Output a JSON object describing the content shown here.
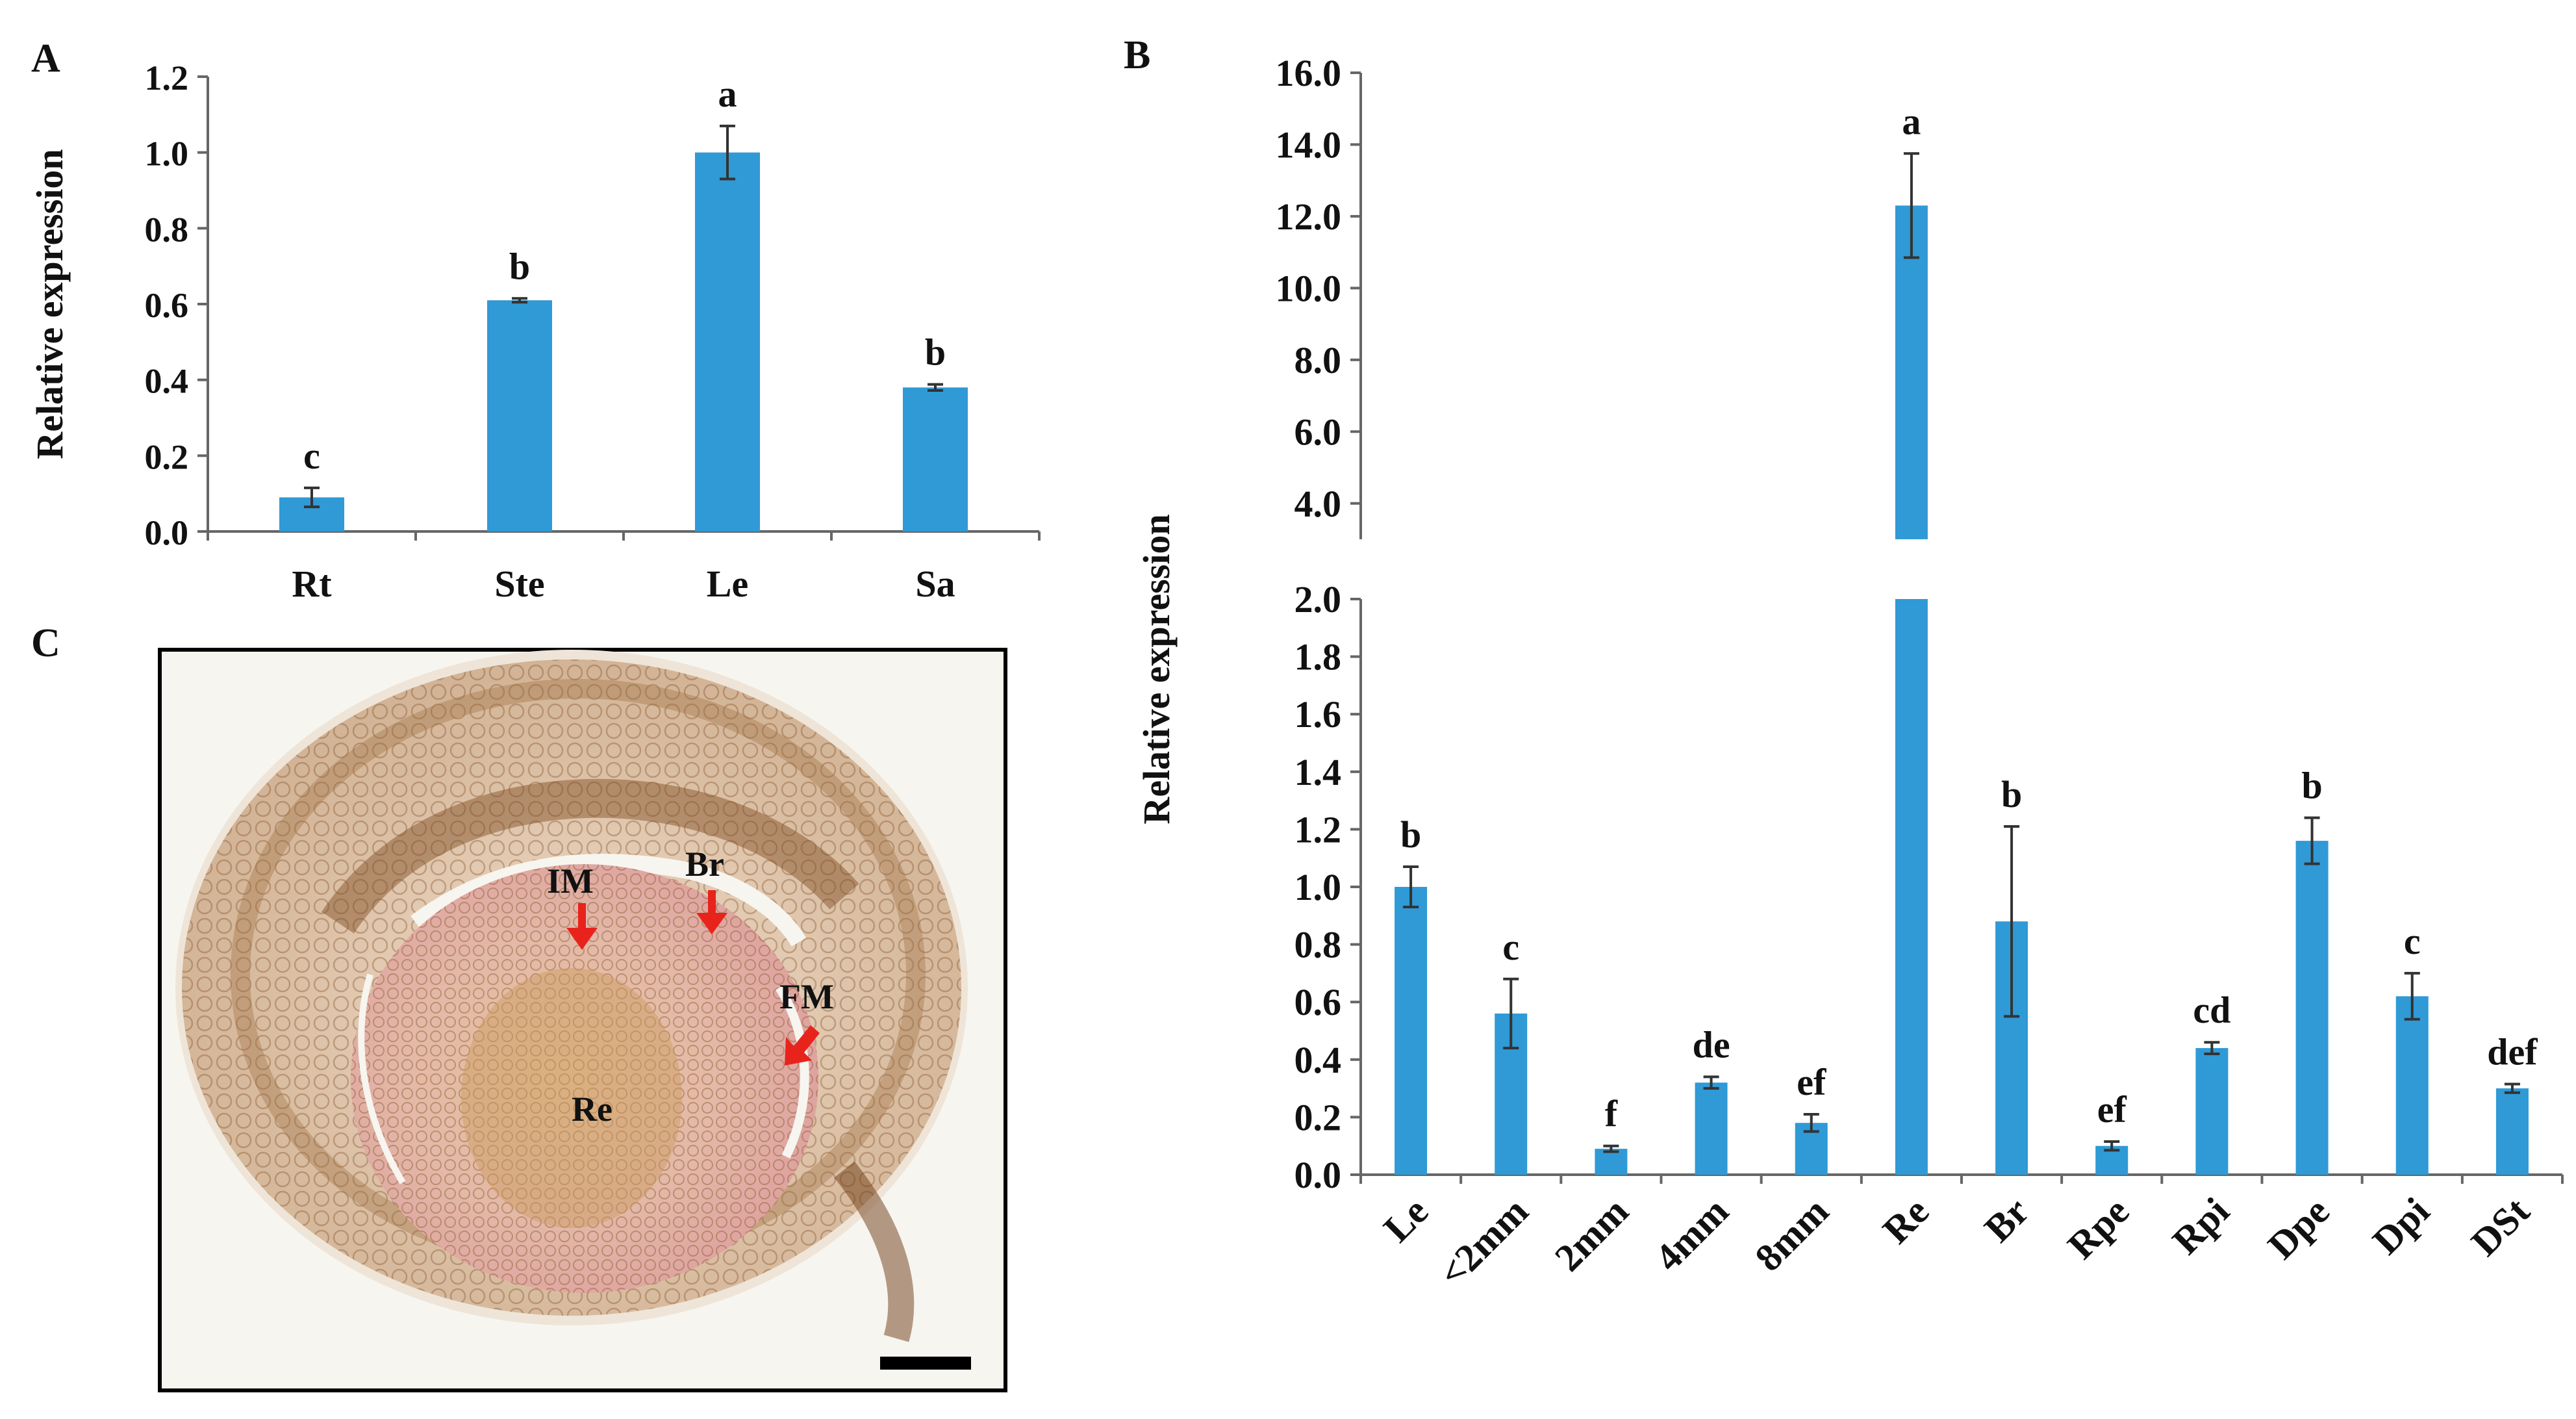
{
  "chart_data": [
    {
      "panel": "A",
      "type": "bar",
      "ylabel": "Relative expression",
      "ylim": [
        0,
        1.2
      ],
      "yticks": [
        "0.0",
        "0.2",
        "0.4",
        "0.6",
        "0.8",
        "1.0",
        "1.2"
      ],
      "categories": [
        "Rt",
        "Ste",
        "Le",
        "Sa"
      ],
      "values": [
        0.09,
        0.61,
        1.0,
        0.38
      ],
      "errors": [
        0.025,
        0.005,
        0.07,
        0.008
      ],
      "letters": [
        "c",
        "b",
        "a",
        "b"
      ],
      "bar_color": "#2f9ad6"
    },
    {
      "panel": "B",
      "type": "bar",
      "ylabel": "Relative expression",
      "broken_axis": true,
      "lower_ylim": [
        0,
        2.0
      ],
      "upper_ylim": [
        3.0,
        16.0
      ],
      "lower_yticks": [
        "0.0",
        "0.2",
        "0.4",
        "0.6",
        "0.8",
        "1.0",
        "1.2",
        "1.4",
        "1.6",
        "1.8",
        "2.0"
      ],
      "upper_yticks": [
        "4.0",
        "6.0",
        "8.0",
        "10.0",
        "12.0",
        "14.0",
        "16.0"
      ],
      "categories": [
        "Le",
        "<2mm",
        "2mm",
        "4mm",
        "8mm",
        "Re",
        "Br",
        "Rpe",
        "Rpi",
        "Dpe",
        "Dpi",
        "DSt"
      ],
      "values": [
        1.0,
        0.56,
        0.09,
        0.32,
        0.18,
        12.3,
        0.88,
        0.1,
        0.44,
        1.16,
        0.62,
        0.3
      ],
      "errors": [
        0.07,
        0.12,
        0.01,
        0.02,
        0.03,
        1.45,
        0.33,
        0.015,
        0.02,
        0.08,
        0.08,
        0.015
      ],
      "letters": [
        "b",
        "c",
        "f",
        "de",
        "ef",
        "a",
        "b",
        "ef",
        "cd",
        "b",
        "c",
        "def"
      ],
      "bar_color": "#2f9ad6"
    }
  ],
  "micrograph": {
    "panel": "C",
    "labels": {
      "im": "IM",
      "br": "Br",
      "fm": "FM",
      "re": "Re"
    }
  }
}
